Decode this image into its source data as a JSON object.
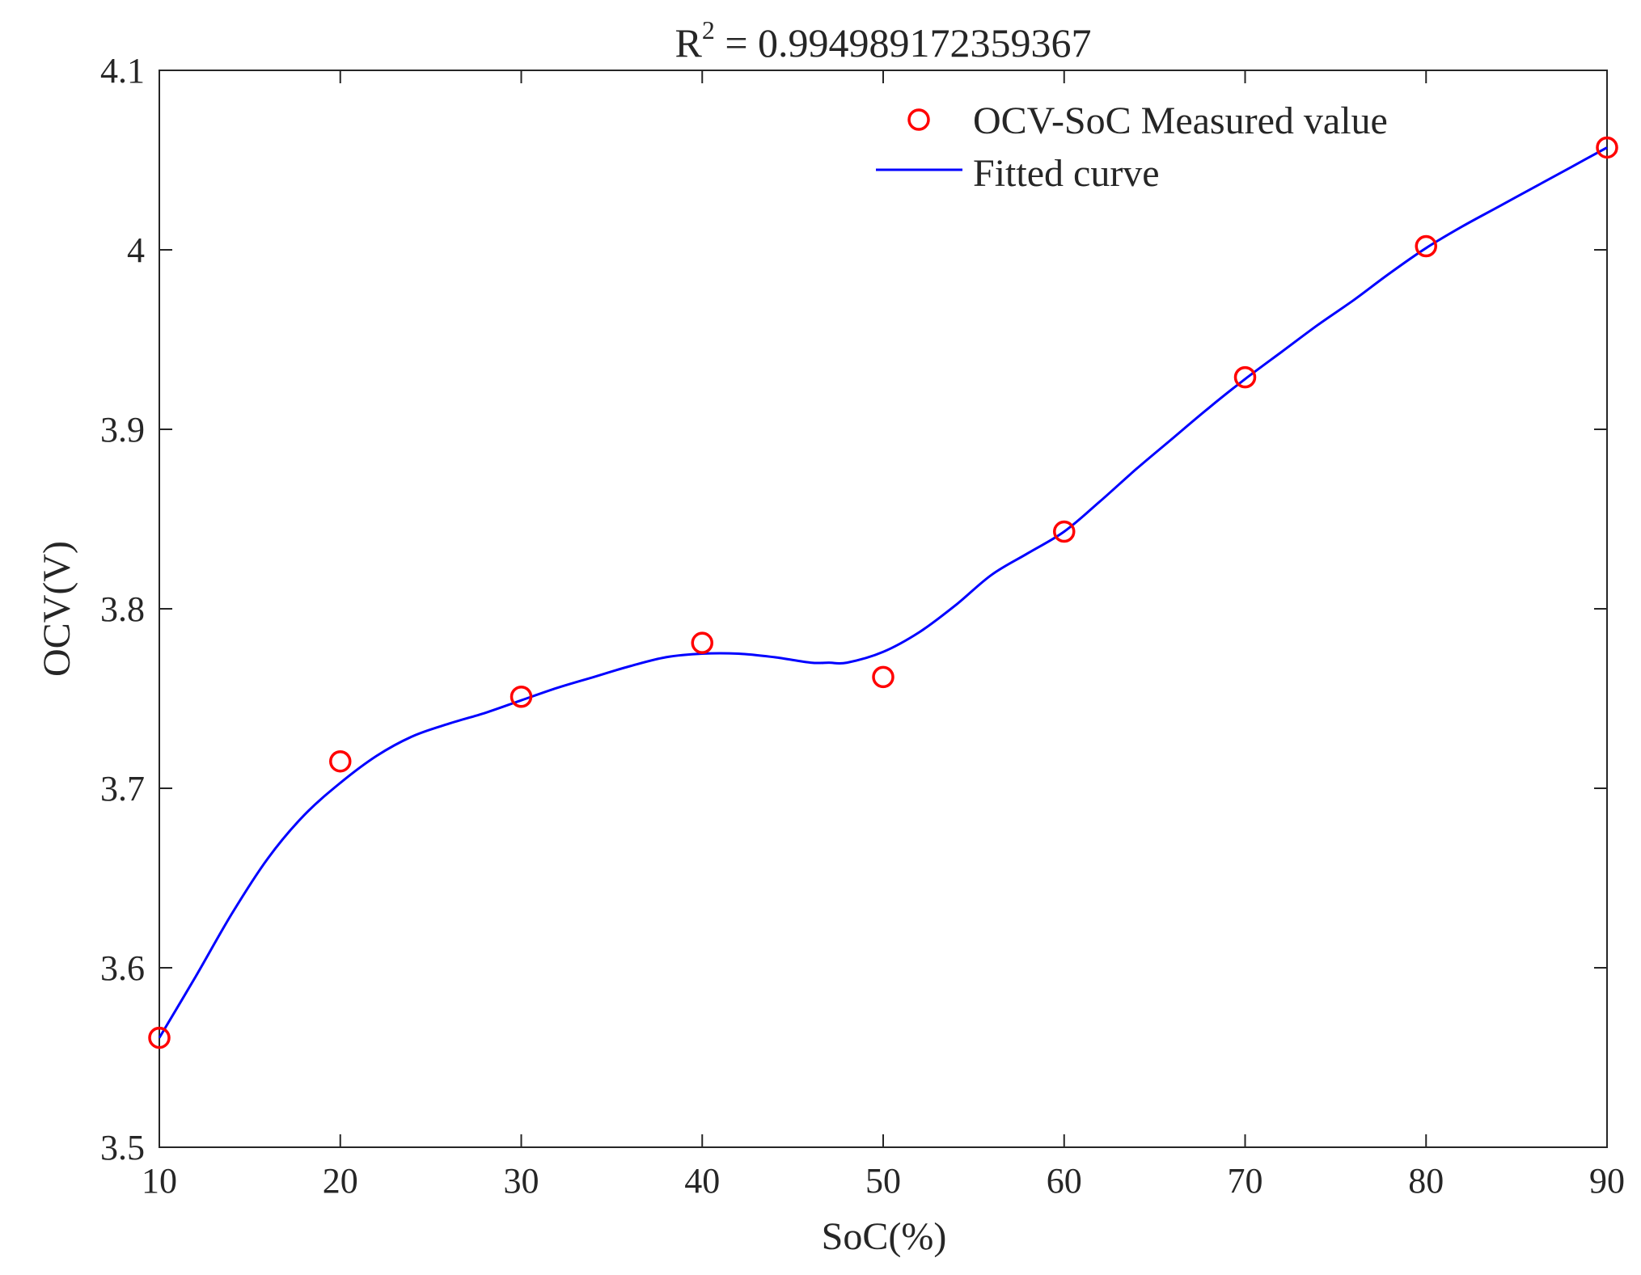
{
  "chart_data": {
    "type": "scatter",
    "title": {
      "prefix": "R",
      "superscript": "2",
      "value": " = 0.994989172359367"
    },
    "xlabel": "SoC(%)",
    "ylabel": "OCV(V)",
    "xlim": [
      10,
      90
    ],
    "ylim": [
      3.5,
      4.1
    ],
    "xticks": [
      "10",
      "20",
      "30",
      "40",
      "50",
      "60",
      "70",
      "80",
      "90"
    ],
    "yticks": [
      "3.5",
      "3.6",
      "3.7",
      "3.8",
      "3.9",
      "4",
      "4.1"
    ],
    "grid": false,
    "legend_placement": "top-right",
    "series": [
      {
        "name": "OCV-SoC Measured value",
        "kind": "markers",
        "marker": "circle",
        "color": "#ff0000",
        "x": [
          10,
          20,
          30,
          40,
          50,
          60,
          70,
          80,
          90
        ],
        "y": [
          3.561,
          3.715,
          3.751,
          3.781,
          3.762,
          3.843,
          3.929,
          4.002,
          4.057
        ]
      },
      {
        "name": "Fitted curve",
        "kind": "line",
        "color": "#0000ff",
        "x": [
          10,
          12,
          14,
          16,
          18,
          20,
          22,
          24,
          26,
          28,
          30,
          32,
          34,
          36,
          38,
          40,
          42,
          44,
          46,
          47,
          48,
          50,
          52,
          54,
          56,
          58,
          60,
          62,
          64,
          66,
          68,
          70,
          72,
          74,
          76,
          78,
          80,
          82,
          84,
          86,
          88,
          90
        ],
        "y": [
          3.561,
          3.595,
          3.63,
          3.661,
          3.685,
          3.703,
          3.718,
          3.729,
          3.736,
          3.742,
          3.749,
          3.756,
          3.762,
          3.768,
          3.773,
          3.775,
          3.775,
          3.773,
          3.77,
          3.77,
          3.77,
          3.776,
          3.787,
          3.802,
          3.819,
          3.831,
          3.843,
          3.86,
          3.878,
          3.895,
          3.912,
          3.928,
          3.943,
          3.958,
          3.972,
          3.987,
          4.001,
          4.013,
          4.024,
          4.035,
          4.046,
          4.057
        ]
      }
    ]
  }
}
